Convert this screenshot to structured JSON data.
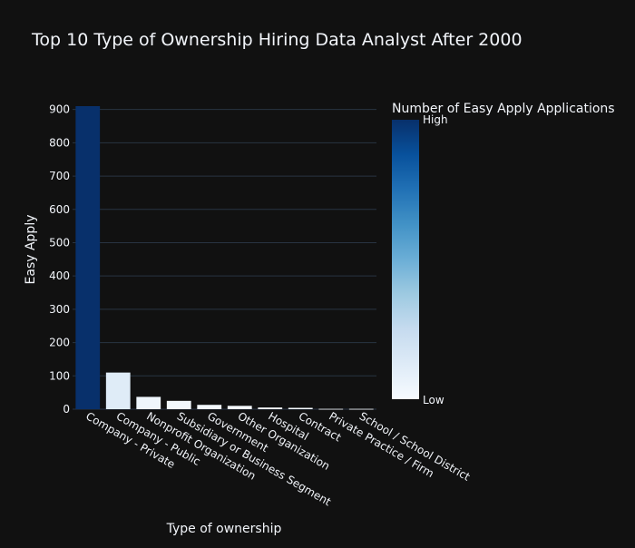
{
  "chart_data": {
    "type": "bar",
    "title": "Top 10 Type of Ownership Hiring Data Analyst After 2000",
    "xlabel": "Type of ownership",
    "ylabel": "Easy Apply",
    "categories": [
      "Company - Private",
      "Company - Public",
      "Nonprofit Organization",
      "Subsidiary or Business Segment",
      "Government",
      "Other Organization",
      "Hospital",
      "Contract",
      "Private Practice / Firm",
      "School / School District"
    ],
    "values": [
      910,
      110,
      37,
      25,
      13,
      10,
      5,
      4,
      1,
      1
    ],
    "ylim": [
      0,
      910
    ],
    "yticks": [
      0,
      100,
      200,
      300,
      400,
      500,
      600,
      700,
      800,
      900
    ],
    "grid": true,
    "colorbar": {
      "title": "Number of Easy Apply Applications",
      "high_label": "High",
      "low_label": "Low",
      "colorscale": [
        "#f7fbff",
        "#deebf7",
        "#c6dbef",
        "#9ecae1",
        "#6baed6",
        "#4292c6",
        "#2171b5",
        "#08519c",
        "#08306b"
      ]
    },
    "colors": {
      "background": "#111111",
      "grid": "#283442",
      "text": "#f2f5fa"
    }
  }
}
